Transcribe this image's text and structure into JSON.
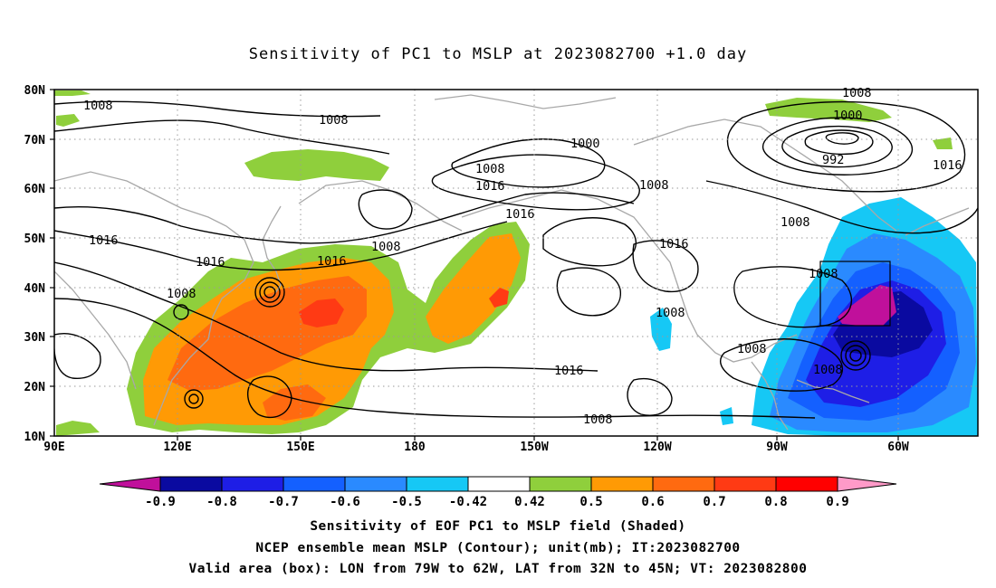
{
  "title": "Sensitivity of PC1 to MSLP at 2023082700 +1.0 day",
  "lat_labels": [
    "80N",
    "70N",
    "60N",
    "50N",
    "40N",
    "30N",
    "20N",
    "10N"
  ],
  "lon_labels": [
    "90E",
    "120E",
    "150E",
    "180",
    "150W",
    "120W",
    "90W",
    "60W"
  ],
  "contour_labels": [
    "1008",
    "1008",
    "1008",
    "1000",
    "1008",
    "1016",
    "1016",
    "1008",
    "1000",
    "992",
    "1016",
    "1008",
    "1016",
    "1008",
    "1016",
    "1016",
    "1008",
    "1008",
    "1008",
    "1016",
    "1008",
    "1008",
    "1016",
    "1008"
  ],
  "colorbar": {
    "labels": [
      "-0.9",
      "-0.8",
      "-0.7",
      "-0.6",
      "-0.5",
      "-0.42",
      "0.42",
      "0.5",
      "0.6",
      "0.7",
      "0.8",
      "0.9"
    ],
    "colors": [
      "#c0109b",
      "#0a0aa0",
      "#1e1ee6",
      "#1460ff",
      "#2a8aff",
      "#16c8f5",
      "#ffffff",
      "#8fcf3c",
      "#ff9a05",
      "#ff6a10",
      "#ff3a14",
      "#ff0000",
      "#ff9ac8"
    ]
  },
  "captions": [
    "Sensitivity of EOF PC1 to MSLP field (Shaded)",
    "NCEP ensemble mean MSLP (Contour); unit(mb); IT:2023082700",
    "Valid area (box): LON from 79W to 62W, LAT from 32N to 45N; VT: 2023082800"
  ]
}
